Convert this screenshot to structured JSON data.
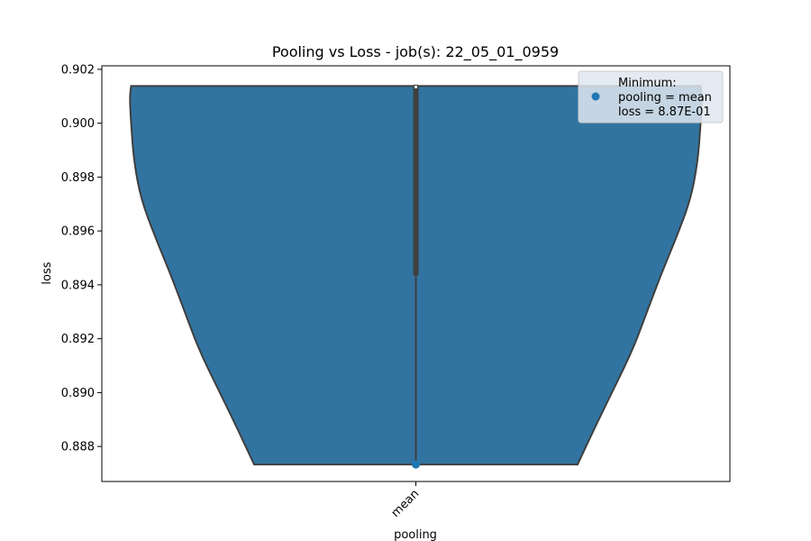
{
  "chart_data": {
    "type": "violin",
    "title": "Pooling vs Loss - job(s): 22_05_01_0959",
    "xlabel": "pooling",
    "ylabel": "loss",
    "categories": [
      "mean"
    ],
    "ylim": [
      0.8867,
      0.90213
    ],
    "yticks": [
      0.888,
      0.89,
      0.892,
      0.894,
      0.896,
      0.898,
      0.9,
      0.902
    ],
    "ytick_labels": [
      "0.888",
      "0.890",
      "0.892",
      "0.894",
      "0.896",
      "0.898",
      "0.900",
      "0.902"
    ],
    "violin": {
      "category": "mean",
      "y_min": 0.88733,
      "y_max": 0.90138,
      "q1": 0.89435,
      "q3": 0.90138,
      "fill_color": "#3274a1",
      "edge_color": "#3f3f3f"
    },
    "min_point": {
      "x": "mean",
      "y": 0.88733,
      "color": "#1f77b4"
    },
    "legend": {
      "location": "upper right",
      "title_line": "Minimum:",
      "line2": "pooling = mean",
      "line3": "loss = 8.87E-01"
    }
  }
}
